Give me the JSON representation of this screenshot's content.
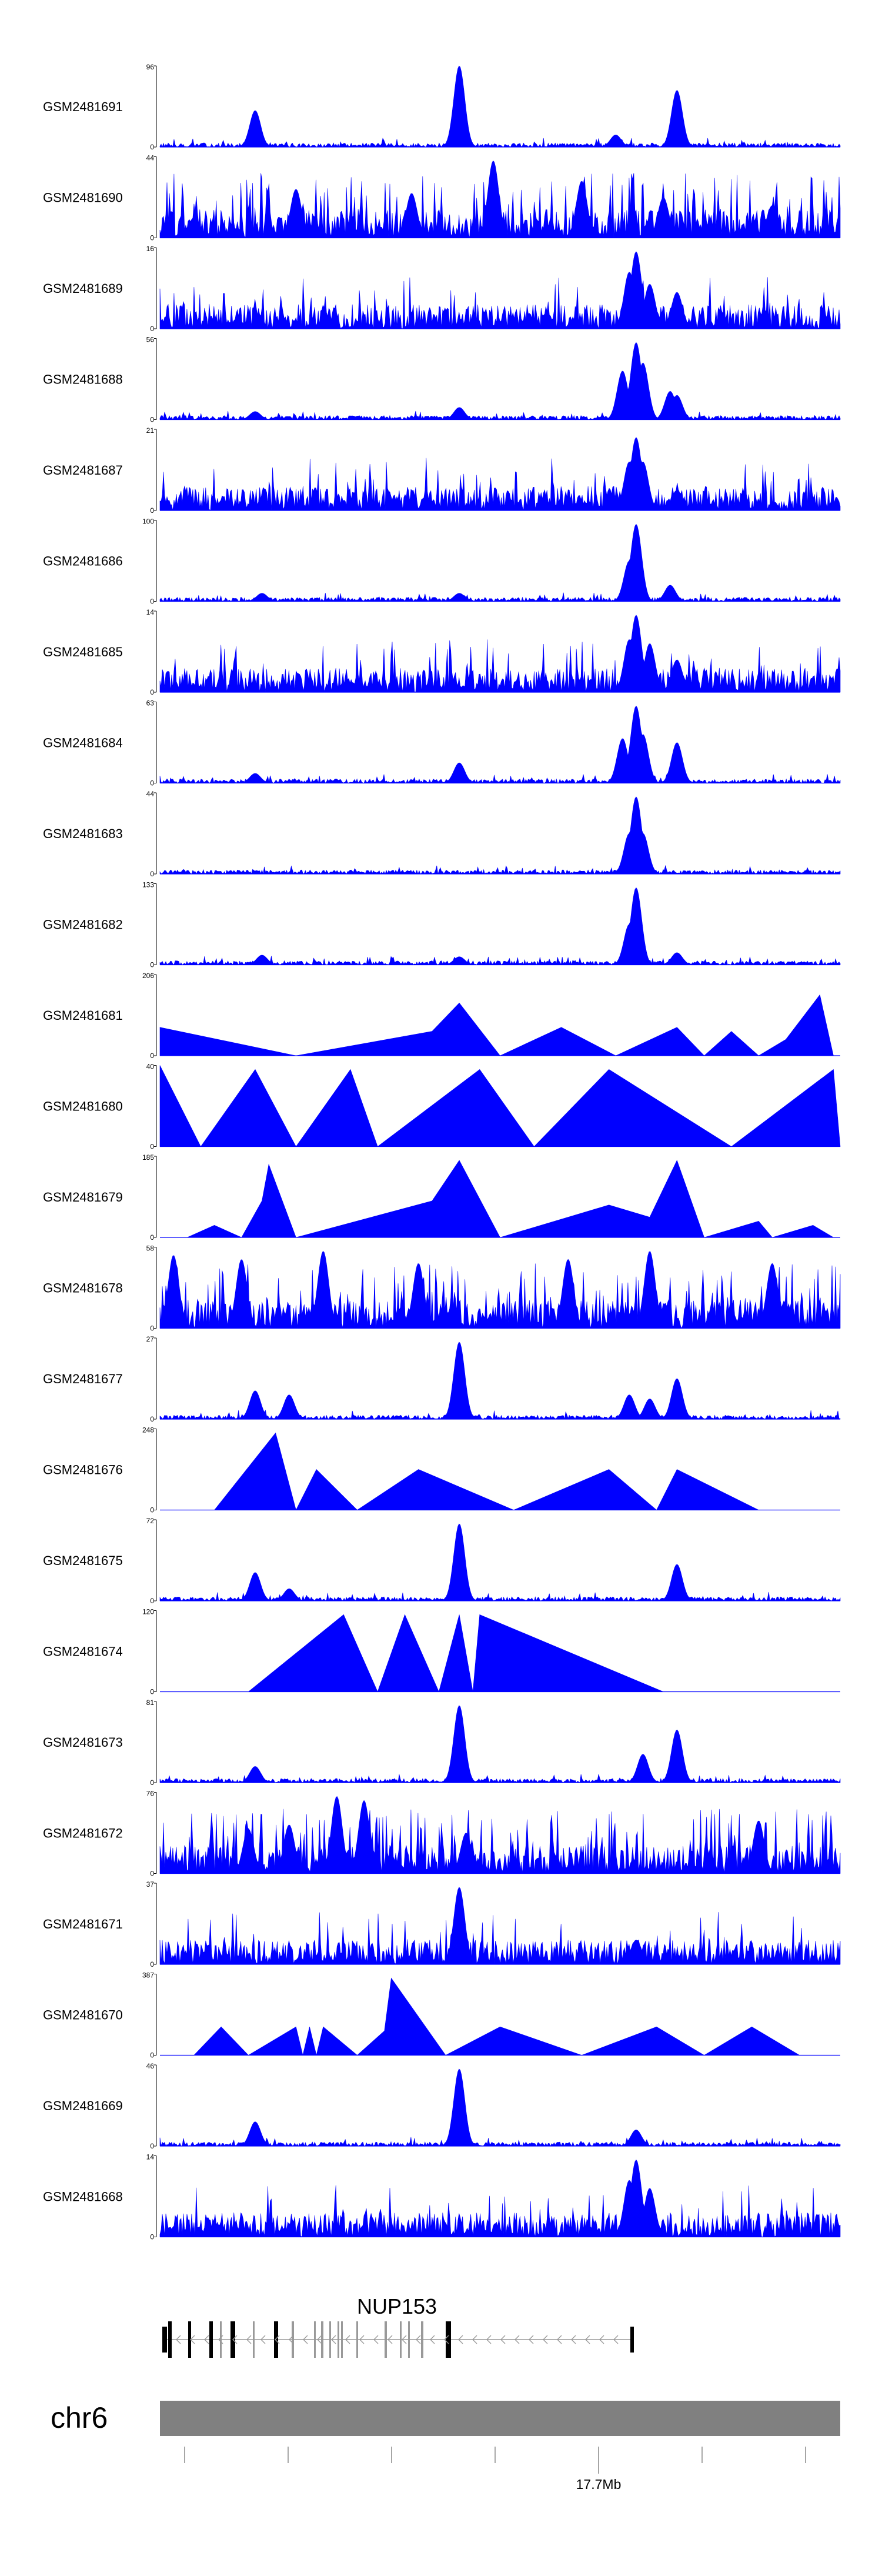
{
  "colors": {
    "track_fill": "#0000ff",
    "axis": "#000000",
    "gene": "#000000",
    "gene_light": "#999999",
    "ideogram": "#808080"
  },
  "chart_data": {
    "type": "area",
    "chromosome": "chr6",
    "region_label": "17.7Mb",
    "gene": {
      "name": "NUP153",
      "strand": "-"
    },
    "tracks": [
      {
        "name": "GSM2481691",
        "ymax": "96",
        "ymin": "0",
        "style": "dense",
        "peaks": [
          [
            0.14,
            0.45
          ],
          [
            0.44,
            1.0
          ],
          [
            0.67,
            0.15
          ],
          [
            0.76,
            0.7
          ]
        ]
      },
      {
        "name": "GSM2481690",
        "ymax": "44",
        "ymin": "0",
        "style": "spiky",
        "peaks": [
          [
            0.05,
            0.25
          ],
          [
            0.2,
            0.6
          ],
          [
            0.37,
            0.55
          ],
          [
            0.49,
            0.95
          ],
          [
            0.62,
            0.7
          ],
          [
            0.74,
            0.5
          ],
          [
            0.9,
            0.4
          ]
        ]
      },
      {
        "name": "GSM2481689",
        "ymax": "16",
        "ymin": "0",
        "style": "noisy",
        "peaks": [
          [
            0.69,
            0.7
          ],
          [
            0.7,
            0.95
          ],
          [
            0.72,
            0.55
          ],
          [
            0.76,
            0.45
          ]
        ]
      },
      {
        "name": "GSM2481688",
        "ymax": "56",
        "ymin": "0",
        "style": "dense",
        "peaks": [
          [
            0.14,
            0.1
          ],
          [
            0.44,
            0.15
          ],
          [
            0.68,
            0.6
          ],
          [
            0.7,
            0.95
          ],
          [
            0.71,
            0.7
          ],
          [
            0.75,
            0.35
          ],
          [
            0.76,
            0.3
          ]
        ]
      },
      {
        "name": "GSM2481687",
        "ymax": "21",
        "ymin": "0",
        "style": "noisy",
        "peaks": [
          [
            0.69,
            0.6
          ],
          [
            0.7,
            0.9
          ],
          [
            0.71,
            0.6
          ],
          [
            0.76,
            0.25
          ]
        ]
      },
      {
        "name": "GSM2481686",
        "ymax": "100",
        "ymin": "0",
        "style": "dense",
        "peaks": [
          [
            0.15,
            0.1
          ],
          [
            0.44,
            0.1
          ],
          [
            0.69,
            0.5
          ],
          [
            0.7,
            0.95
          ],
          [
            0.75,
            0.2
          ]
        ]
      },
      {
        "name": "GSM2481685",
        "ymax": "14",
        "ymin": "0",
        "style": "noisy",
        "peaks": [
          [
            0.69,
            0.65
          ],
          [
            0.7,
            0.95
          ],
          [
            0.72,
            0.6
          ],
          [
            0.76,
            0.4
          ]
        ]
      },
      {
        "name": "GSM2481684",
        "ymax": "63",
        "ymin": "0",
        "style": "dense",
        "peaks": [
          [
            0.14,
            0.12
          ],
          [
            0.44,
            0.25
          ],
          [
            0.68,
            0.55
          ],
          [
            0.7,
            0.95
          ],
          [
            0.71,
            0.6
          ],
          [
            0.76,
            0.5
          ]
        ]
      },
      {
        "name": "GSM2481683",
        "ymax": "44",
        "ymin": "0",
        "style": "dense",
        "peaks": [
          [
            0.69,
            0.5
          ],
          [
            0.7,
            0.95
          ],
          [
            0.71,
            0.5
          ]
        ]
      },
      {
        "name": "GSM2481682",
        "ymax": "133",
        "ymin": "0",
        "style": "dense",
        "peaks": [
          [
            0.15,
            0.12
          ],
          [
            0.44,
            0.1
          ],
          [
            0.69,
            0.5
          ],
          [
            0.7,
            0.95
          ],
          [
            0.76,
            0.15
          ]
        ]
      },
      {
        "name": "GSM2481681",
        "ymax": "206",
        "ymin": "0",
        "style": "triangle",
        "peaks": [
          [
            0.0,
            0.35
          ],
          [
            0.2,
            0.0
          ],
          [
            0.4,
            0.3
          ],
          [
            0.44,
            0.65
          ],
          [
            0.5,
            0.0
          ],
          [
            0.59,
            0.35
          ],
          [
            0.67,
            0.0
          ],
          [
            0.76,
            0.35
          ],
          [
            0.8,
            0.0
          ],
          [
            0.84,
            0.3
          ],
          [
            0.88,
            0.0
          ],
          [
            0.92,
            0.2
          ],
          [
            0.97,
            0.75
          ],
          [
            0.99,
            0.0
          ]
        ]
      },
      {
        "name": "GSM2481680",
        "ymax": "40",
        "ymin": "0",
        "style": "triangle",
        "peaks": [
          [
            0.0,
            1.0
          ],
          [
            0.06,
            0.0
          ],
          [
            0.14,
            0.95
          ],
          [
            0.2,
            0.0
          ],
          [
            0.28,
            0.95
          ],
          [
            0.32,
            0.0
          ],
          [
            0.47,
            0.95
          ],
          [
            0.55,
            0.0
          ],
          [
            0.66,
            0.95
          ],
          [
            0.84,
            0.0
          ],
          [
            0.99,
            0.95
          ],
          [
            1.0,
            0.0
          ]
        ]
      },
      {
        "name": "GSM2481679",
        "ymax": "185",
        "ymin": "0",
        "style": "triangle",
        "peaks": [
          [
            0.04,
            0.0
          ],
          [
            0.08,
            0.15
          ],
          [
            0.12,
            0.0
          ],
          [
            0.15,
            0.45
          ],
          [
            0.16,
            0.9
          ],
          [
            0.2,
            0.0
          ],
          [
            0.4,
            0.45
          ],
          [
            0.44,
            0.95
          ],
          [
            0.5,
            0.0
          ],
          [
            0.6,
            0.25
          ],
          [
            0.66,
            0.4
          ],
          [
            0.72,
            0.25
          ],
          [
            0.76,
            0.95
          ],
          [
            0.8,
            0.0
          ],
          [
            0.88,
            0.2
          ],
          [
            0.9,
            0.0
          ],
          [
            0.96,
            0.15
          ],
          [
            0.99,
            0.0
          ]
        ]
      },
      {
        "name": "GSM2481678",
        "ymax": "58",
        "ymin": "0",
        "style": "spiky",
        "peaks": [
          [
            0.02,
            0.9
          ],
          [
            0.12,
            0.85
          ],
          [
            0.24,
            0.95
          ],
          [
            0.38,
            0.8
          ],
          [
            0.6,
            0.85
          ],
          [
            0.72,
            0.95
          ],
          [
            0.9,
            0.8
          ]
        ]
      },
      {
        "name": "GSM2481677",
        "ymax": "27",
        "ymin": "0",
        "style": "dense",
        "peaks": [
          [
            0.14,
            0.35
          ],
          [
            0.19,
            0.3
          ],
          [
            0.44,
            0.95
          ],
          [
            0.69,
            0.3
          ],
          [
            0.72,
            0.25
          ],
          [
            0.76,
            0.5
          ]
        ]
      },
      {
        "name": "GSM2481676",
        "ymax": "248",
        "ymin": "0",
        "style": "triangle",
        "peaks": [
          [
            0.08,
            0.0
          ],
          [
            0.17,
            0.95
          ],
          [
            0.2,
            0.0
          ],
          [
            0.23,
            0.5
          ],
          [
            0.29,
            0.0
          ],
          [
            0.38,
            0.5
          ],
          [
            0.52,
            0.0
          ],
          [
            0.66,
            0.5
          ],
          [
            0.73,
            0.0
          ],
          [
            0.76,
            0.5
          ],
          [
            0.88,
            0.0
          ]
        ]
      },
      {
        "name": "GSM2481675",
        "ymax": "72",
        "ymin": "0",
        "style": "dense",
        "peaks": [
          [
            0.14,
            0.35
          ],
          [
            0.19,
            0.15
          ],
          [
            0.44,
            0.95
          ],
          [
            0.76,
            0.45
          ]
        ]
      },
      {
        "name": "GSM2481674",
        "ymax": "120",
        "ymin": "0",
        "style": "triangle",
        "peaks": [
          [
            0.13,
            0.0
          ],
          [
            0.27,
            0.95
          ],
          [
            0.32,
            0.0
          ],
          [
            0.36,
            0.95
          ],
          [
            0.41,
            0.0
          ],
          [
            0.44,
            0.95
          ],
          [
            0.46,
            0.0
          ],
          [
            0.47,
            0.95
          ],
          [
            0.74,
            0.0
          ]
        ]
      },
      {
        "name": "GSM2481673",
        "ymax": "81",
        "ymin": "0",
        "style": "dense",
        "peaks": [
          [
            0.14,
            0.2
          ],
          [
            0.44,
            0.95
          ],
          [
            0.71,
            0.35
          ],
          [
            0.76,
            0.65
          ]
        ]
      },
      {
        "name": "GSM2481672",
        "ymax": "76",
        "ymin": "0",
        "style": "spiky",
        "peaks": [
          [
            0.13,
            0.55
          ],
          [
            0.19,
            0.6
          ],
          [
            0.26,
            0.95
          ],
          [
            0.3,
            0.9
          ],
          [
            0.45,
            0.5
          ],
          [
            0.88,
            0.65
          ]
        ]
      },
      {
        "name": "GSM2481671",
        "ymax": "37",
        "ymin": "0",
        "style": "noisy",
        "peaks": [
          [
            0.44,
            0.95
          ],
          [
            0.7,
            0.3
          ]
        ]
      },
      {
        "name": "GSM2481670",
        "ymax": "387",
        "ymin": "0",
        "style": "triangle",
        "peaks": [
          [
            0.05,
            0.0
          ],
          [
            0.09,
            0.35
          ],
          [
            0.13,
            0.0
          ],
          [
            0.2,
            0.35
          ],
          [
            0.21,
            0.0
          ],
          [
            0.22,
            0.35
          ],
          [
            0.23,
            0.0
          ],
          [
            0.24,
            0.35
          ],
          [
            0.29,
            0.0
          ],
          [
            0.33,
            0.3
          ],
          [
            0.34,
            0.95
          ],
          [
            0.42,
            0.0
          ],
          [
            0.5,
            0.35
          ],
          [
            0.62,
            0.0
          ],
          [
            0.73,
            0.35
          ],
          [
            0.8,
            0.0
          ],
          [
            0.87,
            0.35
          ],
          [
            0.94,
            0.0
          ]
        ]
      },
      {
        "name": "GSM2481669",
        "ymax": "46",
        "ymin": "0",
        "style": "dense",
        "peaks": [
          [
            0.14,
            0.3
          ],
          [
            0.44,
            0.95
          ],
          [
            0.7,
            0.2
          ]
        ]
      },
      {
        "name": "GSM2481668",
        "ymax": "14",
        "ymin": "0",
        "style": "noisy",
        "peaks": [
          [
            0.69,
            0.7
          ],
          [
            0.7,
            0.95
          ],
          [
            0.72,
            0.6
          ]
        ]
      }
    ]
  }
}
